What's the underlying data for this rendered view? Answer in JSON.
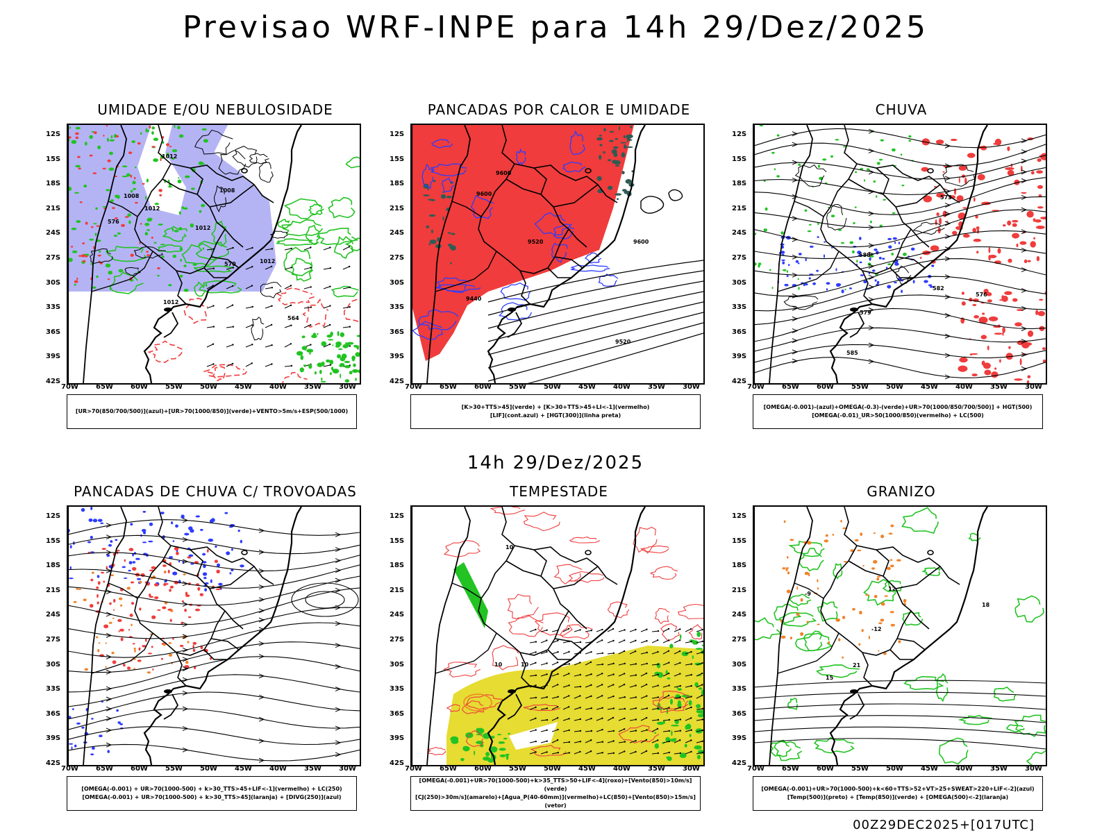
{
  "header": {
    "title": "Previsao WRF-INPE  para 14h 29/Dez/2025",
    "mid_time": "14h 29/Dez/2025",
    "run_stamp": "00Z29DEC2025+[017UTC]"
  },
  "axes": {
    "lat_labels": [
      "12S",
      "15S",
      "18S",
      "21S",
      "24S",
      "27S",
      "30S",
      "33S",
      "36S",
      "39S",
      "42S"
    ],
    "lon_labels": [
      "70W",
      "65W",
      "60W",
      "55W",
      "50W",
      "45W",
      "40W",
      "35W",
      "30W"
    ]
  },
  "panels": [
    {
      "title": "UMIDADE E/OU NEBULOSIDADE",
      "legend": [
        "[UR>70(850/700/500)](azul)+[UR>70(1000/850)](verde)+VENTO>5m/s+ESP(500/1000)"
      ],
      "contour_labels": [
        "1012",
        "1008",
        "1012",
        "1012",
        "1012",
        "1008",
        "576",
        "570",
        "564",
        "1012"
      ]
    },
    {
      "title": "PANCADAS POR CALOR E UMIDADE",
      "legend": [
        "[K>30+TTS>45](verde) + [K>30+TTS>45+LI<-1](vermelho)",
        "[LIF](cont.azul) + [HGT(300)](linha preta)"
      ],
      "contour_labels": [
        "9600",
        "9600",
        "9520",
        "9520",
        "9440",
        "9600"
      ]
    },
    {
      "title": "CHUVA",
      "legend": [
        "[OMEGA(-0.001)-(azul)+OMEGA(-0.3)-(verde)+UR>70(1000/850/700/500)] + HGT(500)",
        "[OMEGA(-0.01)_UR>50(1000/850)(vermelho) + LC(500)"
      ],
      "contour_labels": [
        "585",
        "582",
        "588",
        "579",
        "576",
        "573"
      ]
    },
    {
      "title": "PANCADAS DE CHUVA C/ TROVOADAS",
      "legend": [
        "[OMEGA(-0.001) + UR>70(1000-500) + k>30_TTS>45+LIF<-1](vermelho) + LC(250)",
        "[OMEGA(-0.001) + UR>70(1000-500) + k>30_TTS>45](laranja) + [DIVG(250)](azul)"
      ],
      "contour_labels": []
    },
    {
      "title": "TEMPESTADE",
      "legend": [
        "[OMEGA(-0.001)+UR>70(1000-500)+k>35_TTS>50+LIF<-4](roxo)+[Vento(850)>10m/s](verde)",
        "[CJ(250)>30m/s](amarelo)+[Agua_P(40-60mm)](vermelho)+LC(850)+[Vento(850)>15m/s](vetor)"
      ],
      "contour_labels": [
        "10",
        "10",
        "10"
      ]
    },
    {
      "title": "GRANIZO",
      "legend": [
        "[OMEGA(-0.001)+UR>70(1000-500)+k<60+TTS>52+VT>25+SWEAT>220+LIF<-2](azul)",
        "[Temp(500)](preto) + [Temp(850)](verde) + [OMEGA(500)<-2](laranja)"
      ],
      "contour_labels": [
        "-12",
        "-9",
        "15",
        "18",
        "21",
        "12"
      ]
    }
  ],
  "colors": {
    "blue_shade": "#b4b4f5",
    "red_fill": "#f03c3c",
    "green": "#22c322",
    "blue_line": "#2d3cff",
    "yellow": "#e6dc32",
    "orange": "#f08228",
    "dark_teal": "#2f5b55"
  }
}
